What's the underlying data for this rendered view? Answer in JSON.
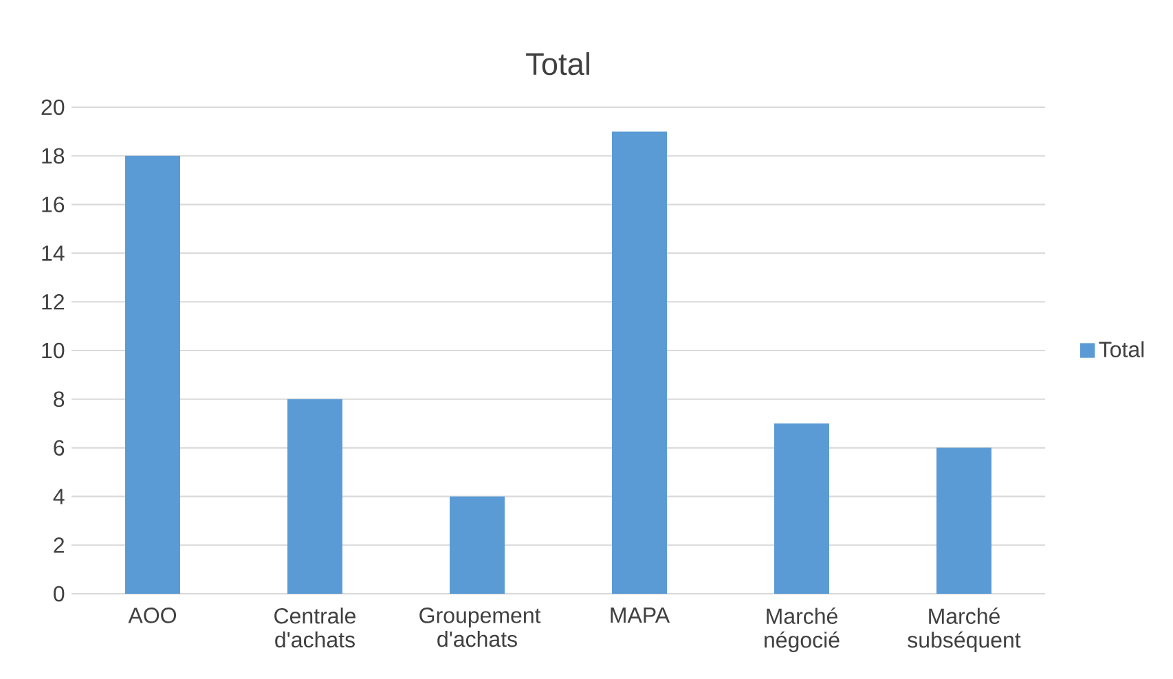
{
  "chart_data": {
    "type": "bar",
    "title": "Total",
    "categories": [
      "AOO",
      "Centrale d'achats",
      "Groupement d'achats",
      "MAPA",
      "Marché négocié",
      "Marché subséquent"
    ],
    "series": [
      {
        "name": "Total",
        "color": "#5b9bd5",
        "values": [
          18,
          8,
          4,
          19,
          7,
          6
        ]
      }
    ],
    "ylim": [
      0,
      20
    ],
    "yticks": [
      0,
      2,
      4,
      6,
      8,
      10,
      12,
      14,
      16,
      18,
      20
    ],
    "grid": "y",
    "legend": "right"
  }
}
